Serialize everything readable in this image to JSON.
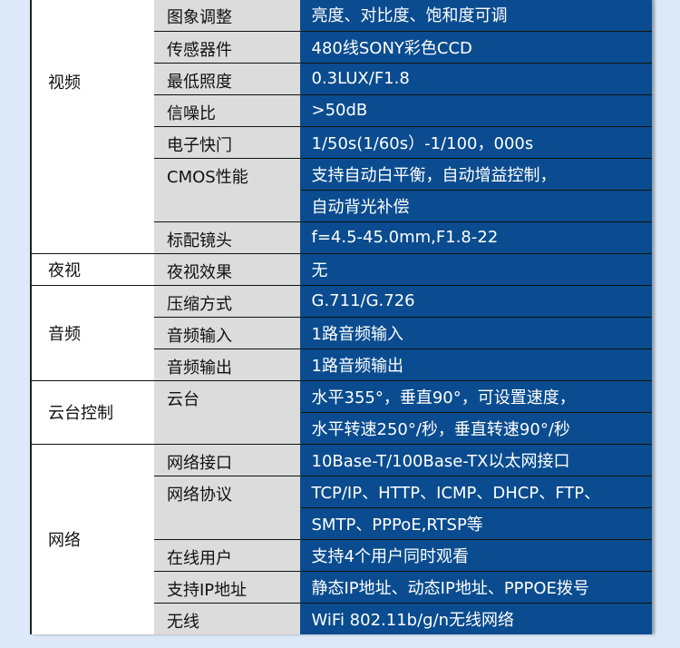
{
  "groups": [
    {
      "label": "视频",
      "rows": [
        {
          "name": "图象调整",
          "values": [
            "亮度、对比度、饱和度可调"
          ]
        },
        {
          "name": "传感器件",
          "values": [
            "480线SONY彩色CCD"
          ]
        },
        {
          "name": "最低照度",
          "values": [
            "0.3LUX/F1.8"
          ]
        },
        {
          "name": "信噪比",
          "values": [
            ">50dB"
          ]
        },
        {
          "name": "电子快门",
          "values": [
            "1/50s(1/60s）-1/100，000s"
          ]
        },
        {
          "name": "CMOS性能",
          "values": [
            "支持自动白平衡，自动增益控制，",
            "自动背光补偿"
          ]
        },
        {
          "name": "标配镜头",
          "values": [
            "f=4.5-45.0mm,F1.8-22"
          ]
        }
      ]
    },
    {
      "label": "夜视",
      "rows": [
        {
          "name": "夜视效果",
          "values": [
            "无"
          ]
        }
      ]
    },
    {
      "label": "音频",
      "rows": [
        {
          "name": "压缩方式",
          "values": [
            "G.711/G.726"
          ]
        },
        {
          "name": "音频输入",
          "values": [
            "1路音频输入"
          ]
        },
        {
          "name": "音频输出",
          "values": [
            "1路音频输出"
          ]
        }
      ]
    },
    {
      "label": "云台控制",
      "rows": [
        {
          "name": "云台",
          "values": [
            "水平355°，垂直90°，可设置速度，",
            "水平转速250°/秒，垂直转速90°/秒"
          ]
        }
      ]
    },
    {
      "label": "网络",
      "rows": [
        {
          "name": "网络接口",
          "values": [
            "10Base-T/100Base-TX以太网接口"
          ]
        },
        {
          "name": "网络协议",
          "values": [
            "TCP/IP、HTTP、ICMP、DHCP、FTP、",
            "SMTP、PPPoE,RTSP等"
          ]
        },
        {
          "name": "在线用户",
          "values": [
            "支持4个用户同时观看"
          ]
        },
        {
          "name": "支持IP地址",
          "values": [
            "静态IP地址、动态IP地址、PPPOE拨号"
          ]
        },
        {
          "name": "无线",
          "values": [
            "WiFi 802.11b/g/n无线网络"
          ]
        }
      ]
    }
  ],
  "colors": {
    "background": "#dce9f8",
    "name_column": "#dcdcdc",
    "value_column": "#0a4c8f"
  }
}
